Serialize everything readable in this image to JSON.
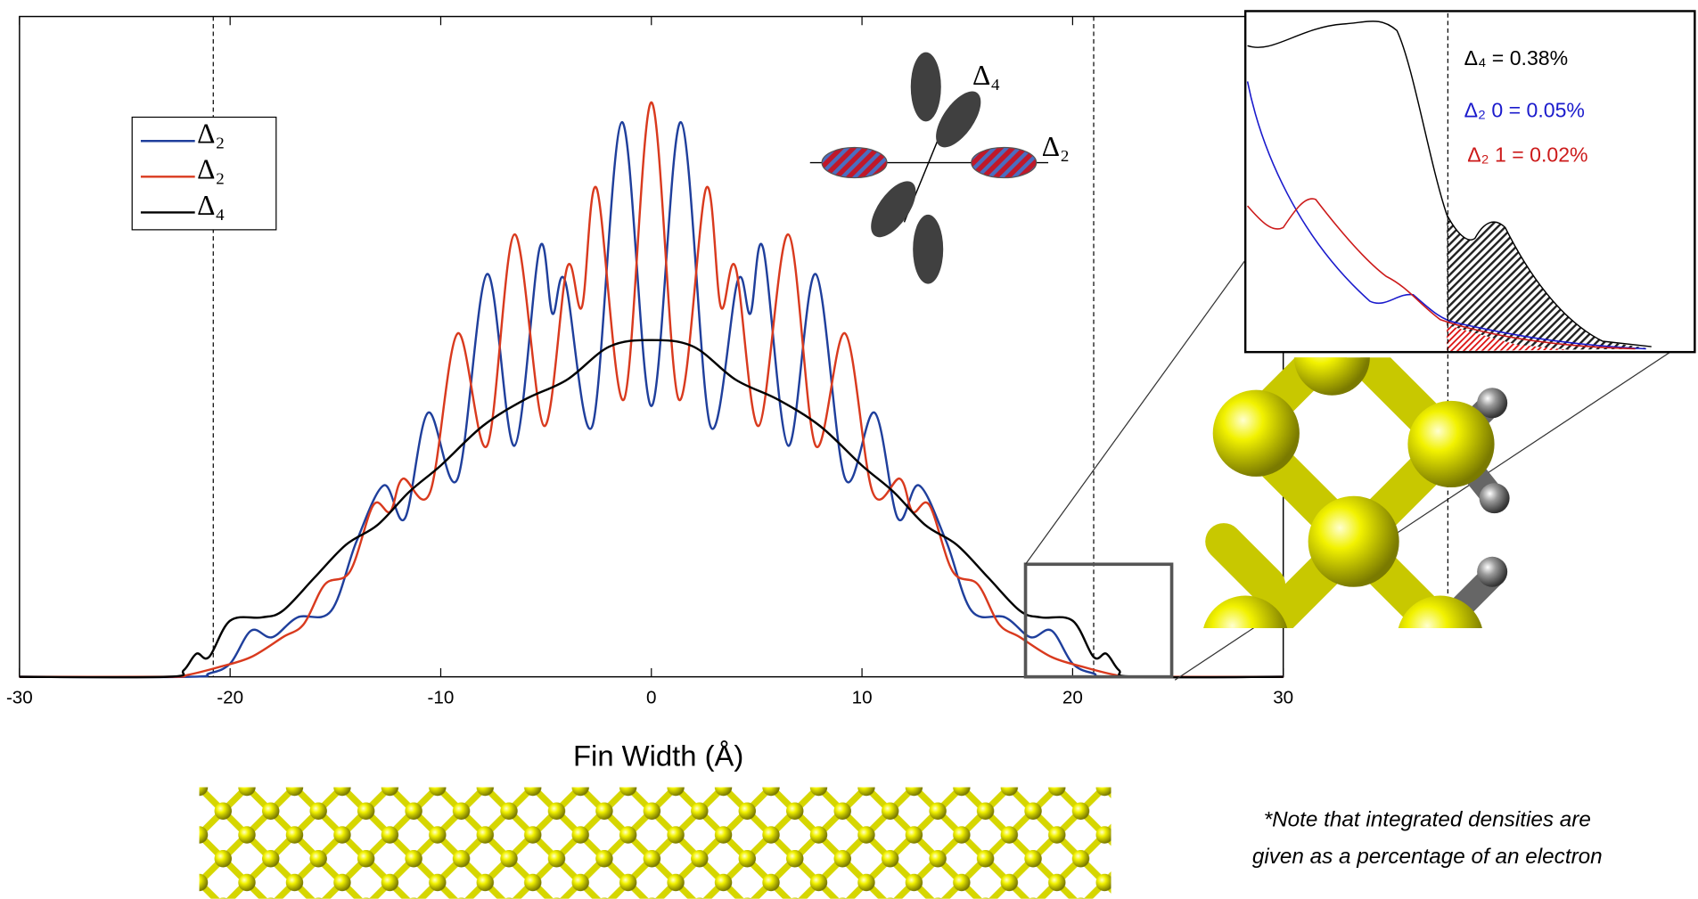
{
  "chart_data": {
    "type": "line",
    "x_label": "Fin Width (Å)",
    "xlim": [
      -30,
      30
    ],
    "xticks": [
      -30,
      -20,
      -10,
      0,
      10,
      20,
      30
    ],
    "ylim": [
      0,
      100
    ],
    "vlines": [
      -20.8,
      21
    ],
    "legend": "upper left",
    "series": [
      {
        "name": "Δ₂",
        "color": "#1f3f9c",
        "x": [
          -30,
          -22,
          -21,
          -20,
          -19,
          -18,
          -16.8,
          -15.2,
          -14,
          -12.7,
          -11.7,
          -10.6,
          -9.2,
          -7.8,
          -6.5,
          -5.3,
          -4.7,
          -4.1,
          -2.8,
          -1.4,
          0,
          1.4,
          2.8,
          4.1,
          4.7,
          5.3,
          6.5,
          7.8,
          9.2,
          10.6,
          11.7,
          12.7,
          14,
          15.2,
          16.8,
          18,
          19,
          20,
          21,
          22,
          30
        ],
        "values": [
          0,
          0,
          0.5,
          2,
          7,
          6,
          9,
          10,
          20.5,
          29,
          24,
          40,
          30,
          61,
          35,
          65,
          55,
          60,
          38,
          84,
          41,
          84,
          38,
          60,
          55,
          65,
          35,
          61,
          30,
          40,
          24,
          29,
          20.5,
          10,
          9,
          6,
          7,
          2,
          0.5,
          0,
          0
        ]
      },
      {
        "name": "Δ₂",
        "color": "#d93a1e",
        "x": [
          -30,
          -23,
          -22,
          -20.5,
          -19,
          -17.5,
          -16.5,
          -15.5,
          -14.3,
          -13.2,
          -12.4,
          -11.8,
          -10.5,
          -9.2,
          -7.8,
          -6.5,
          -5.1,
          -4,
          -3.3,
          -2.6,
          -1.3,
          0,
          1.3,
          2.6,
          3.3,
          4,
          5.1,
          6.5,
          7.8,
          9.2,
          10.5,
          11.8,
          12.4,
          13.2,
          14.3,
          15.5,
          16.5,
          17.5,
          19,
          20.5,
          22,
          23,
          30
        ],
        "values": [
          0,
          0,
          0.3,
          1.5,
          3,
          6,
          8,
          14,
          16,
          26,
          25,
          30,
          28,
          52,
          35,
          67,
          38,
          62,
          56,
          74,
          42,
          87,
          42,
          74,
          56,
          62,
          38,
          67,
          35,
          52,
          28,
          30,
          25,
          26,
          16,
          14,
          8,
          6,
          3,
          1.5,
          0.3,
          0,
          0
        ]
      },
      {
        "name": "Δ₄",
        "color": "#000000",
        "x": [
          -30,
          -23,
          -22.2,
          -21.6,
          -21,
          -20,
          -18.5,
          -17.5,
          -16,
          -14.5,
          -13,
          -11.5,
          -10,
          -8,
          -6,
          -4,
          -2,
          0,
          2,
          4,
          6,
          8,
          10,
          11.5,
          13,
          14.5,
          16,
          17.5,
          18.5,
          20,
          21,
          21.6,
          22.2,
          23,
          30
        ],
        "values": [
          0,
          0,
          1,
          3.5,
          3,
          8.5,
          9,
          10,
          15,
          20,
          23,
          28,
          32,
          38,
          42,
          45,
          50,
          51,
          50,
          45,
          42,
          38,
          32,
          28,
          23,
          20,
          15,
          10,
          9,
          8.5,
          3,
          3.5,
          1,
          0,
          0
        ]
      }
    ]
  },
  "orbital_labels": [
    "Δ₄",
    "Δ₂"
  ],
  "inset_labels": [
    {
      "text": "Δ₄ = 0.38%",
      "color": "#000000"
    },
    {
      "text": "Δ₂ 0 = 0.05%",
      "color": "#1a1acc"
    },
    {
      "text": "Δ₂ 1 = 0.02%",
      "color": "#cc1a1a"
    }
  ],
  "note": [
    "*Note that integrated densities are",
    "given as a percentage of an electron"
  ]
}
